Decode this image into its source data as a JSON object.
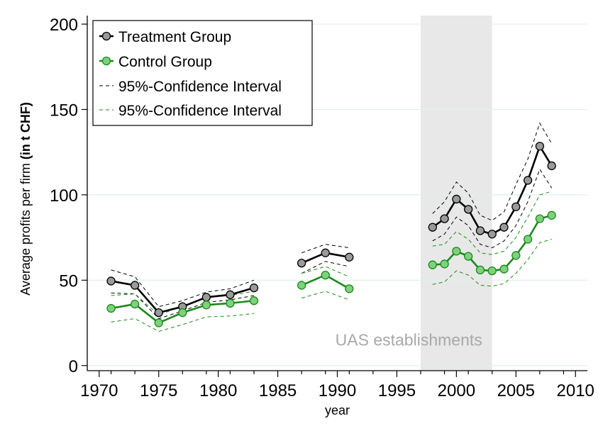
{
  "chart_data": {
    "type": "line",
    "xlabel": "year",
    "ylabel_normal": "Average profits per firm ",
    "ylabel_bold": "(in t CHF)",
    "xlim": [
      1969,
      2011
    ],
    "ylim": [
      -3,
      205
    ],
    "xticks": [
      1970,
      1975,
      1980,
      1985,
      1990,
      1995,
      2000,
      2005,
      2010
    ],
    "yticks": [
      0,
      50,
      100,
      150,
      200
    ],
    "grid": true,
    "legend_position": "top-left",
    "shaded_region": {
      "x": [
        1997,
        2003
      ],
      "color": "#e8e8e8"
    },
    "annotation": {
      "text": "UAS establishments",
      "x": 1996,
      "y": 15
    },
    "series": [
      {
        "name": "Treatment Group",
        "kind": "main",
        "color": "#000000",
        "marker_fill": "#9a9a9a",
        "segments": [
          {
            "x": [
              1971,
              1973,
              1975,
              1977,
              1979,
              1981,
              1983
            ],
            "y": [
              49.5,
              47,
              31,
              34.5,
              40,
              41.5,
              45.5
            ]
          },
          {
            "x": [
              1987,
              1989,
              1991
            ],
            "y": [
              60,
              66,
              63.5
            ]
          },
          {
            "x": [
              1998,
              1999,
              2000,
              2001,
              2002,
              2003,
              2004,
              2005,
              2006,
              2007,
              2008
            ],
            "y": [
              81,
              86,
              97.5,
              91.5,
              79,
              77,
              81,
              93,
              108.5,
              128.5,
              117
            ]
          }
        ]
      },
      {
        "name": "Control Group",
        "kind": "main",
        "color": "#1a8a1a",
        "marker_fill": "#7fd07f",
        "segments": [
          {
            "x": [
              1971,
              1973,
              1975,
              1977,
              1979,
              1981,
              1983
            ],
            "y": [
              33.5,
              36,
              25,
              31,
              35.5,
              36.5,
              38
            ]
          },
          {
            "x": [
              1987,
              1989,
              1991
            ],
            "y": [
              47,
              53,
              45
            ]
          },
          {
            "x": [
              1998,
              1999,
              2000,
              2001,
              2002,
              2003,
              2004,
              2005,
              2006,
              2007,
              2008
            ],
            "y": [
              59,
              59.5,
              67,
              64,
              56,
              55.5,
              56.5,
              64.5,
              74,
              86,
              88
            ]
          }
        ]
      },
      {
        "name": "95%-Confidence Interval",
        "kind": "ci",
        "color": "#000000",
        "bounds": [
          {
            "segments": [
              {
                "x": [
                  1971,
                  1973,
                  1975,
                  1977,
                  1979,
                  1981,
                  1983
                ],
                "y": [
                  56,
                  52,
                  34.5,
                  38,
                  43,
                  45,
                  50
                ]
              },
              {
                "x": [
                  1987,
                  1989,
                  1991
                ],
                "y": [
                  66,
                  71,
                  69
                ]
              },
              {
                "x": [
                  1998,
                  1999,
                  2000,
                  2001,
                  2002,
                  2003,
                  2004,
                  2005,
                  2006,
                  2007,
                  2008
                ],
                "y": [
                  89,
                  96,
                  107.5,
                  101,
                  88,
                  85,
                  90,
                  106,
                  121,
                  142,
                  130
                ]
              }
            ]
          },
          {
            "segments": [
              {
                "x": [
                  1971,
                  1973,
                  1975,
                  1977,
                  1979,
                  1981,
                  1983
                ],
                "y": [
                  42.5,
                  42,
                  27.5,
                  32,
                  37,
                  38.5,
                  41
                ]
              },
              {
                "x": [
                  1987,
                  1989,
                  1991
                ],
                "y": [
                  54,
                  61,
                  58
                ]
              },
              {
                "x": [
                  1998,
                  1999,
                  2000,
                  2001,
                  2002,
                  2003,
                  2004,
                  2005,
                  2006,
                  2007,
                  2008
                ],
                "y": [
                  73,
                  77,
                  87,
                  82,
                  71,
                  69,
                  73,
                  82,
                  96,
                  115,
                  104
                ]
              }
            ]
          }
        ]
      },
      {
        "name": "95%-Confidence Interval",
        "kind": "ci",
        "color": "#1a8a1a",
        "bounds": [
          {
            "segments": [
              {
                "x": [
                  1971,
                  1973,
                  1975,
                  1977,
                  1979,
                  1981,
                  1983
                ],
                "y": [
                  41,
                  42,
                  29.5,
                  35,
                  40,
                  41,
                  43.5
                ]
              },
              {
                "x": [
                  1987,
                  1989,
                  1991
                ],
                "y": [
                  54,
                  58,
                  52
                ]
              },
              {
                "x": [
                  1998,
                  1999,
                  2000,
                  2001,
                  2002,
                  2003,
                  2004,
                  2005,
                  2006,
                  2007,
                  2008
                ],
                "y": [
                  70,
                  71,
                  78.5,
                  74,
                  66,
                  65,
                  67,
                  75,
                  87,
                  100,
                  102
                ]
              }
            ]
          },
          {
            "segments": [
              {
                "x": [
                  1971,
                  1973,
                  1975,
                  1977,
                  1979,
                  1981,
                  1983
                ],
                "y": [
                  25.5,
                  27.5,
                  20,
                  24,
                  28.5,
                  29,
                  30.5
                ]
              },
              {
                "x": [
                  1987,
                  1989,
                  1991
                ],
                "y": [
                  39.5,
                  43.5,
                  38.5
                ]
              },
              {
                "x": [
                  1998,
                  1999,
                  2000,
                  2001,
                  2002,
                  2003,
                  2004,
                  2005,
                  2006,
                  2007,
                  2008
                ],
                "y": [
                  47.5,
                  49,
                  55.5,
                  53,
                  47,
                  46.5,
                  48,
                  54,
                  62,
                  72,
                  74
                ]
              }
            ]
          }
        ]
      }
    ]
  }
}
